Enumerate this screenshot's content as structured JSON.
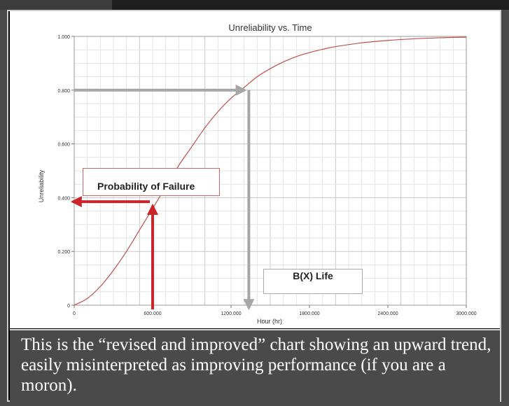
{
  "chart_data": {
    "type": "line",
    "title": "Unreliability vs. Time",
    "xlabel": "Hour (hr)",
    "ylabel": "Unreliability",
    "xlim": [
      0,
      3000
    ],
    "ylim": [
      0,
      1
    ],
    "x_ticks": [
      0,
      600,
      1200,
      1800,
      2400,
      3000
    ],
    "x_tick_labels": [
      "0",
      "600.000",
      "1200.000",
      "1800.000",
      "2400.000",
      "3000.000"
    ],
    "y_ticks": [
      0,
      0.2,
      0.4,
      0.6,
      0.8,
      1.0
    ],
    "y_tick_labels": [
      "0",
      "0.200",
      "0.400",
      "0.600",
      "0.800",
      "1.000"
    ],
    "grid": true,
    "series": [
      {
        "color": "#c0504d",
        "x": [
          0,
          100,
          200,
          300,
          400,
          500,
          600,
          700,
          800,
          900,
          1000,
          1100,
          1200,
          1300,
          1400,
          1500,
          1600,
          1700,
          1800,
          1900,
          2000,
          2200,
          2400,
          2600,
          2800,
          3000
        ],
        "y": [
          0,
          0.025,
          0.07,
          0.13,
          0.2,
          0.28,
          0.36,
          0.44,
          0.52,
          0.59,
          0.66,
          0.72,
          0.77,
          0.81,
          0.85,
          0.88,
          0.905,
          0.925,
          0.94,
          0.952,
          0.962,
          0.976,
          0.985,
          0.991,
          0.995,
          0.997
        ]
      }
    ],
    "annotations": {
      "probability_of_failure": {
        "label": "Probability of Failure",
        "color": "#c9252b",
        "x_value": 600,
        "y_value": 0.38
      },
      "bx_life": {
        "label": "B(X) Life",
        "color": "#a6a6a6",
        "x_value": 1320,
        "y_value": 0.8
      }
    }
  },
  "caption": {
    "text": "This is the “revised and improved” chart showing an upward trend, easily misinterpreted as improving performance (if you are a moron)."
  }
}
